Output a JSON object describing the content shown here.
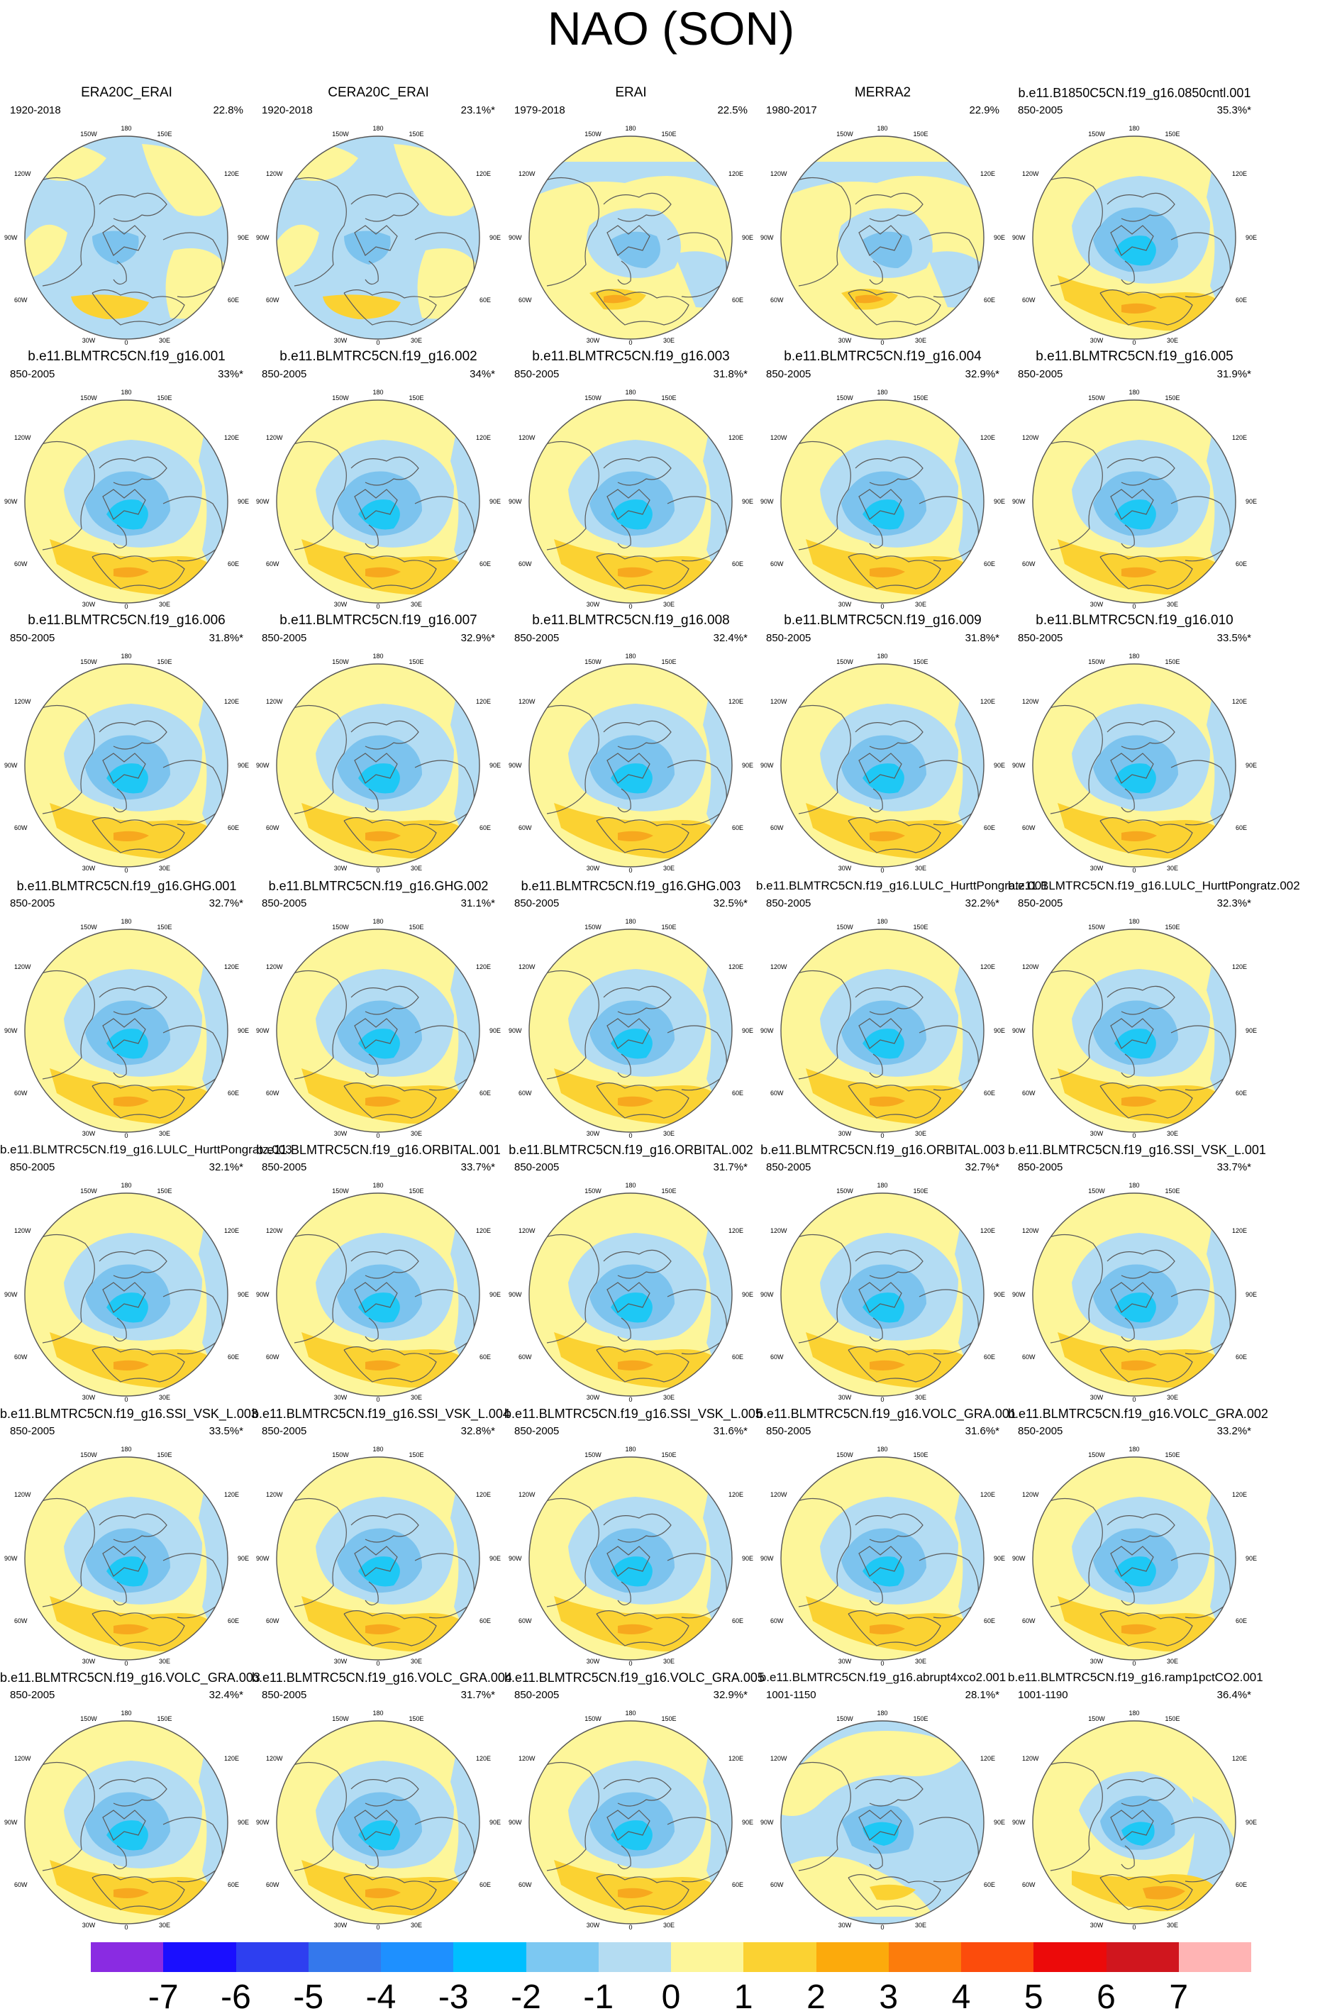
{
  "title": "NAO (SON)",
  "map_labels": {
    "lon_top": "180",
    "lon_bottom": "0",
    "lon_150w": "150W",
    "lon_150e": "150E",
    "lon_120w": "120W",
    "lon_120e": "120E",
    "lon_90w": "90W",
    "lon_90e": "90E",
    "lon_60w": "60W",
    "lon_60e": "60E",
    "lon_30w": "30W",
    "lon_30e": "30E"
  },
  "colors": {
    "background": "#ffffff",
    "blue_light": "#b3dcf3",
    "blue_medium": "#7cc3ee",
    "blue_strong": "#1ec8f5",
    "yellow_light": "#fdf69a",
    "orange_medium": "#fbd232",
    "orange_strong": "#f7a81e",
    "coastline": "#5a5a5a",
    "circle_border": "#555555"
  },
  "panels": [
    {
      "name": "ERA20C_ERAI",
      "period": "1920-2018",
      "pct": "22.8%",
      "pattern": "obs_ext"
    },
    {
      "name": "CERA20C_ERAI",
      "period": "1920-2018",
      "pct": "23.1%*",
      "pattern": "obs_ext"
    },
    {
      "name": "ERAI",
      "period": "1979-2018",
      "pct": "22.5%",
      "pattern": "obs_short"
    },
    {
      "name": "MERRA2",
      "period": "1980-2017",
      "pct": "22.9%",
      "pattern": "obs_short"
    },
    {
      "name": "b.e11.B1850C5CN.f19_g16.0850cntl.001",
      "period": "850-2005",
      "pct": "35.3%*",
      "pattern": "model"
    },
    {
      "name": "b.e11.BLMTRC5CN.f19_g16.001",
      "period": "850-2005",
      "pct": "33%*",
      "pattern": "model"
    },
    {
      "name": "b.e11.BLMTRC5CN.f19_g16.002",
      "period": "850-2005",
      "pct": "34%*",
      "pattern": "model"
    },
    {
      "name": "b.e11.BLMTRC5CN.f19_g16.003",
      "period": "850-2005",
      "pct": "31.8%*",
      "pattern": "model"
    },
    {
      "name": "b.e11.BLMTRC5CN.f19_g16.004",
      "period": "850-2005",
      "pct": "32.9%*",
      "pattern": "model"
    },
    {
      "name": "b.e11.BLMTRC5CN.f19_g16.005",
      "period": "850-2005",
      "pct": "31.9%*",
      "pattern": "model"
    },
    {
      "name": "b.e11.BLMTRC5CN.f19_g16.006",
      "period": "850-2005",
      "pct": "31.8%*",
      "pattern": "model"
    },
    {
      "name": "b.e11.BLMTRC5CN.f19_g16.007",
      "period": "850-2005",
      "pct": "32.9%*",
      "pattern": "model"
    },
    {
      "name": "b.e11.BLMTRC5CN.f19_g16.008",
      "period": "850-2005",
      "pct": "32.4%*",
      "pattern": "model"
    },
    {
      "name": "b.e11.BLMTRC5CN.f19_g16.009",
      "period": "850-2005",
      "pct": "31.8%*",
      "pattern": "model"
    },
    {
      "name": "b.e11.BLMTRC5CN.f19_g16.010",
      "period": "850-2005",
      "pct": "33.5%*",
      "pattern": "model"
    },
    {
      "name": "b.e11.BLMTRC5CN.f19_g16.GHG.001",
      "period": "850-2005",
      "pct": "32.7%*",
      "pattern": "model"
    },
    {
      "name": "b.e11.BLMTRC5CN.f19_g16.GHG.002",
      "period": "850-2005",
      "pct": "31.1%*",
      "pattern": "model"
    },
    {
      "name": "b.e11.BLMTRC5CN.f19_g16.GHG.003",
      "period": "850-2005",
      "pct": "32.5%*",
      "pattern": "model"
    },
    {
      "name": "b.e11.BLMTRC5CN.f19_g16.LULC_HurttPongratz.001",
      "period": "850-2005",
      "pct": "32.2%*",
      "pattern": "model"
    },
    {
      "name": "b.e11.BLMTRC5CN.f19_g16.LULC_HurttPongratz.002",
      "period": "850-2005",
      "pct": "32.3%*",
      "pattern": "model"
    },
    {
      "name": "b.e11.BLMTRC5CN.f19_g16.LULC_HurttPongratz.003",
      "period": "850-2005",
      "pct": "32.1%*",
      "pattern": "model"
    },
    {
      "name": "b.e11.BLMTRC5CN.f19_g16.ORBITAL.001",
      "period": "850-2005",
      "pct": "33.7%*",
      "pattern": "model"
    },
    {
      "name": "b.e11.BLMTRC5CN.f19_g16.ORBITAL.002",
      "period": "850-2005",
      "pct": "31.7%*",
      "pattern": "model"
    },
    {
      "name": "b.e11.BLMTRC5CN.f19_g16.ORBITAL.003",
      "period": "850-2005",
      "pct": "32.7%*",
      "pattern": "model"
    },
    {
      "name": "b.e11.BLMTRC5CN.f19_g16.SSI_VSK_L.001",
      "period": "850-2005",
      "pct": "33.7%*",
      "pattern": "model"
    },
    {
      "name": "b.e11.BLMTRC5CN.f19_g16.SSI_VSK_L.003",
      "period": "850-2005",
      "pct": "33.5%*",
      "pattern": "model"
    },
    {
      "name": "b.e11.BLMTRC5CN.f19_g16.SSI_VSK_L.004",
      "period": "850-2005",
      "pct": "32.8%*",
      "pattern": "model"
    },
    {
      "name": "b.e11.BLMTRC5CN.f19_g16.SSI_VSK_L.005",
      "period": "850-2005",
      "pct": "31.6%*",
      "pattern": "model"
    },
    {
      "name": "b.e11.BLMTRC5CN.f19_g16.VOLC_GRA.001",
      "period": "850-2005",
      "pct": "31.6%*",
      "pattern": "model"
    },
    {
      "name": "b.e11.BLMTRC5CN.f19_g16.VOLC_GRA.002",
      "period": "850-2005",
      "pct": "33.2%*",
      "pattern": "model"
    },
    {
      "name": "b.e11.BLMTRC5CN.f19_g16.VOLC_GRA.003",
      "period": "850-2005",
      "pct": "32.4%*",
      "pattern": "model"
    },
    {
      "name": "b.e11.BLMTRC5CN.f19_g16.VOLC_GRA.004",
      "period": "850-2005",
      "pct": "31.7%*",
      "pattern": "model"
    },
    {
      "name": "b.e11.BLMTRC5CN.f19_g16.VOLC_GRA.005",
      "period": "850-2005",
      "pct": "32.9%*",
      "pattern": "model"
    },
    {
      "name": "b.e11.BLMTRC5CN.f19_g16.abrupt4xco2.001",
      "period": "1001-1150",
      "pct": "28.1%*",
      "pattern": "abrupt"
    },
    {
      "name": "b.e11.BLMTRC5CN.f19_g16.ramp1pctCO2.001",
      "period": "1001-1190",
      "pct": "36.4%*",
      "pattern": "ramp"
    }
  ],
  "colorbar": {
    "colors": [
      "#8a2be2",
      "#1a0fff",
      "#2e3ff0",
      "#3478ec",
      "#1e90ff",
      "#00bfff",
      "#7cc8f2",
      "#b4dcf2",
      "#fdf69a",
      "#fbd232",
      "#fcaa0c",
      "#fc7c0c",
      "#fc4c0c",
      "#ec0a0a",
      "#d0161e",
      "#ffb4b4"
    ],
    "labels": [
      "-7",
      "-6",
      "-5",
      "-4",
      "-3",
      "-2",
      "-1",
      "0",
      "1",
      "2",
      "3",
      "4",
      "5",
      "6",
      "7"
    ]
  }
}
